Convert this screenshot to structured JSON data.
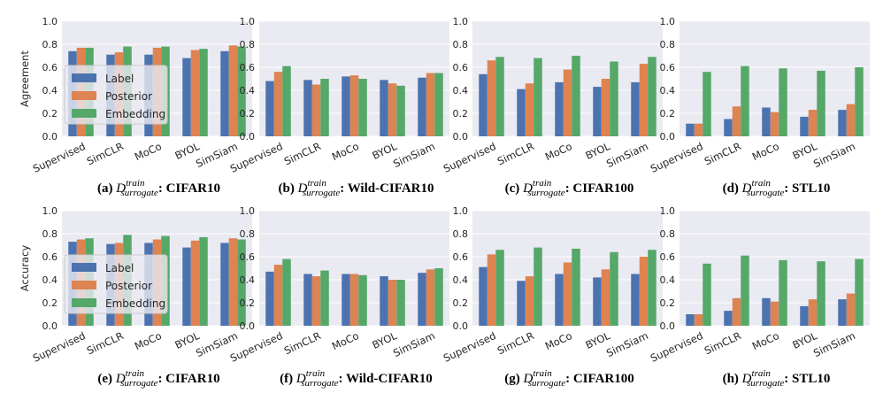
{
  "colors": {
    "label": "#4c72b0",
    "posterior": "#dd8452",
    "embedding": "#55a868",
    "panel_bg": "#eaeaf2",
    "grid": "#ffffff"
  },
  "legend_entries": [
    "Label",
    "Posterior",
    "Embedding"
  ],
  "row_ylabels": [
    "Agreement",
    "Accuracy"
  ],
  "yticks": [
    "0.0",
    "0.2",
    "0.4",
    "0.6",
    "0.8",
    "1.0"
  ],
  "caption_symbol": {
    "base": "D",
    "sup": "train",
    "sub": "surrogate"
  },
  "chart_data": [
    {
      "type": "bar",
      "panel_label": "(a)",
      "dataset": "CIFAR10",
      "ylabel": "Agreement",
      "ylim": [
        0,
        1
      ],
      "grid": true,
      "legend": "center-left",
      "categories": [
        "Supervised",
        "SimCLR",
        "MoCo",
        "BYOL",
        "SimSiam"
      ],
      "series": [
        {
          "name": "Label",
          "values": [
            0.74,
            0.71,
            0.71,
            0.68,
            0.74
          ]
        },
        {
          "name": "Posterior",
          "values": [
            0.77,
            0.73,
            0.77,
            0.75,
            0.79
          ]
        },
        {
          "name": "Embedding",
          "values": [
            0.77,
            0.78,
            0.78,
            0.76,
            0.78
          ]
        }
      ]
    },
    {
      "type": "bar",
      "panel_label": "(b)",
      "dataset": "Wild-CIFAR10",
      "ylabel": "",
      "ylim": [
        0,
        1
      ],
      "grid": true,
      "categories": [
        "Supervised",
        "SimCLR",
        "MoCo",
        "BYOL",
        "SimSiam"
      ],
      "series": [
        {
          "name": "Label",
          "values": [
            0.48,
            0.49,
            0.52,
            0.49,
            0.51
          ]
        },
        {
          "name": "Posterior",
          "values": [
            0.56,
            0.45,
            0.53,
            0.46,
            0.55
          ]
        },
        {
          "name": "Embedding",
          "values": [
            0.61,
            0.5,
            0.5,
            0.44,
            0.55
          ]
        }
      ]
    },
    {
      "type": "bar",
      "panel_label": "(c)",
      "dataset": "CIFAR100",
      "ylabel": "",
      "ylim": [
        0,
        1
      ],
      "grid": true,
      "categories": [
        "Supervised",
        "SimCLR",
        "MoCo",
        "BYOL",
        "SimSiam"
      ],
      "series": [
        {
          "name": "Label",
          "values": [
            0.54,
            0.41,
            0.47,
            0.43,
            0.47
          ]
        },
        {
          "name": "Posterior",
          "values": [
            0.66,
            0.46,
            0.58,
            0.5,
            0.63
          ]
        },
        {
          "name": "Embedding",
          "values": [
            0.69,
            0.68,
            0.7,
            0.65,
            0.69
          ]
        }
      ]
    },
    {
      "type": "bar",
      "panel_label": "(d)",
      "dataset": "STL10",
      "ylabel": "",
      "ylim": [
        0,
        1
      ],
      "grid": true,
      "categories": [
        "Supervised",
        "SimCLR",
        "MoCo",
        "BYOL",
        "SimSiam"
      ],
      "series": [
        {
          "name": "Label",
          "values": [
            0.11,
            0.15,
            0.25,
            0.17,
            0.23
          ]
        },
        {
          "name": "Posterior",
          "values": [
            0.11,
            0.26,
            0.21,
            0.23,
            0.28
          ]
        },
        {
          "name": "Embedding",
          "values": [
            0.56,
            0.61,
            0.59,
            0.57,
            0.6
          ]
        }
      ]
    },
    {
      "type": "bar",
      "panel_label": "(e)",
      "dataset": "CIFAR10",
      "ylabel": "Accuracy",
      "ylim": [
        0,
        1
      ],
      "grid": true,
      "legend": "center-left",
      "categories": [
        "Supervised",
        "SimCLR",
        "MoCo",
        "BYOL",
        "SimSiam"
      ],
      "series": [
        {
          "name": "Label",
          "values": [
            0.73,
            0.71,
            0.72,
            0.68,
            0.72
          ]
        },
        {
          "name": "Posterior",
          "values": [
            0.75,
            0.72,
            0.75,
            0.74,
            0.76
          ]
        },
        {
          "name": "Embedding",
          "values": [
            0.76,
            0.79,
            0.78,
            0.77,
            0.75
          ]
        }
      ]
    },
    {
      "type": "bar",
      "panel_label": "(f)",
      "dataset": "Wild-CIFAR10",
      "ylabel": "",
      "ylim": [
        0,
        1
      ],
      "grid": true,
      "categories": [
        "Supervised",
        "SimCLR",
        "MoCo",
        "BYOL",
        "SimSiam"
      ],
      "series": [
        {
          "name": "Label",
          "values": [
            0.47,
            0.45,
            0.45,
            0.43,
            0.46
          ]
        },
        {
          "name": "Posterior",
          "values": [
            0.53,
            0.43,
            0.45,
            0.4,
            0.49
          ]
        },
        {
          "name": "Embedding",
          "values": [
            0.58,
            0.48,
            0.44,
            0.4,
            0.5
          ]
        }
      ]
    },
    {
      "type": "bar",
      "panel_label": "(g)",
      "dataset": "CIFAR100",
      "ylabel": "",
      "ylim": [
        0,
        1
      ],
      "grid": true,
      "categories": [
        "Supervised",
        "SimCLR",
        "MoCo",
        "BYOL",
        "SimSiam"
      ],
      "series": [
        {
          "name": "Label",
          "values": [
            0.51,
            0.39,
            0.45,
            0.42,
            0.45
          ]
        },
        {
          "name": "Posterior",
          "values": [
            0.62,
            0.43,
            0.55,
            0.49,
            0.6
          ]
        },
        {
          "name": "Embedding",
          "values": [
            0.66,
            0.68,
            0.67,
            0.64,
            0.66
          ]
        }
      ]
    },
    {
      "type": "bar",
      "panel_label": "(h)",
      "dataset": "STL10",
      "ylabel": "",
      "ylim": [
        0,
        1
      ],
      "grid": true,
      "categories": [
        "Supervised",
        "SimCLR",
        "MoCo",
        "BYOL",
        "SimSiam"
      ],
      "series": [
        {
          "name": "Label",
          "values": [
            0.1,
            0.13,
            0.24,
            0.17,
            0.23
          ]
        },
        {
          "name": "Posterior",
          "values": [
            0.1,
            0.24,
            0.21,
            0.23,
            0.28
          ]
        },
        {
          "name": "Embedding",
          "values": [
            0.54,
            0.61,
            0.57,
            0.56,
            0.58
          ]
        }
      ]
    }
  ]
}
